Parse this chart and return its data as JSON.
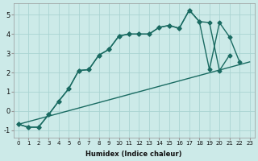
{
  "background_color": "#cceae8",
  "grid_color": "#aad4d2",
  "line_color": "#1a6b62",
  "xlabel": "Humidex (Indice chaleur)",
  "xlim": [
    -0.5,
    23.5
  ],
  "ylim": [
    -1.4,
    5.6
  ],
  "yticks": [
    -1,
    0,
    1,
    2,
    3,
    4,
    5
  ],
  "xticks": [
    0,
    1,
    2,
    3,
    4,
    5,
    6,
    7,
    8,
    9,
    10,
    11,
    12,
    13,
    14,
    15,
    16,
    17,
    18,
    19,
    20,
    21,
    22,
    23
  ],
  "line1_x": [
    0,
    1,
    2,
    3,
    4,
    5,
    6,
    7,
    8,
    9,
    10,
    11,
    12,
    13,
    14,
    15,
    16,
    17,
    18,
    19,
    20,
    21
  ],
  "line1_y": [
    -0.7,
    -0.85,
    -0.85,
    -0.2,
    0.5,
    1.15,
    2.1,
    2.15,
    2.9,
    3.2,
    3.9,
    4.0,
    4.0,
    4.0,
    4.35,
    4.45,
    4.3,
    5.25,
    4.65,
    4.6,
    2.1,
    2.9
  ],
  "line2_x": [
    0,
    1,
    2,
    3,
    4,
    5,
    6,
    7,
    8,
    9,
    10,
    11,
    12,
    13,
    14,
    15,
    16,
    17,
    18,
    19,
    20,
    21,
    22
  ],
  "line2_y": [
    -0.7,
    -0.85,
    -0.85,
    -0.2,
    0.5,
    1.15,
    2.1,
    2.15,
    2.9,
    3.2,
    3.9,
    4.0,
    4.0,
    4.0,
    4.35,
    4.45,
    4.3,
    5.25,
    4.65,
    2.15,
    4.6,
    3.85,
    2.55
  ],
  "line3_x": [
    0,
    23
  ],
  "line3_y": [
    -0.7,
    2.55
  ],
  "marker_size": 2.5,
  "line_width": 1.0
}
